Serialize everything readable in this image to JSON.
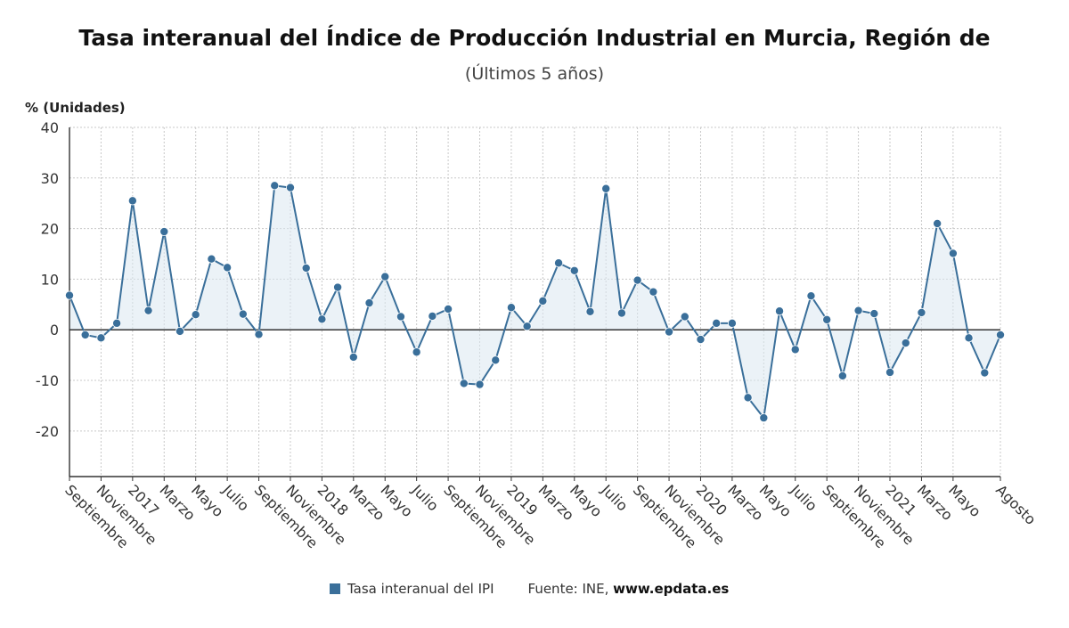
{
  "title": "Tasa interanual del Índice de Producción Industrial en Murcia, Región de",
  "subtitle": "(Últimos 5 años)",
  "legend": {
    "label": "Tasa interanual del IPI",
    "color": "#3a6f9a"
  },
  "source": {
    "prefix": "Fuente: INE,",
    "link": "www.epdata.es"
  },
  "chart_data": {
    "type": "line",
    "title": "Tasa interanual del Índice de Producción Industrial en Murcia, Región de",
    "subtitle": "(Últimos 5 años)",
    "ylabel": "% (Unidades)",
    "xlabel": "",
    "ylim": [
      -29,
      40
    ],
    "yticks": [
      40,
      30,
      20,
      10,
      0,
      -10,
      -20
    ],
    "grid": true,
    "legend_position": "bottom",
    "line_color": "#3a6f9a",
    "fill_color": "#dbe7f1",
    "x_tick_labels": [
      "Septiembre",
      "Noviembre",
      "2017",
      "Marzo",
      "Mayo",
      "Julio",
      "Septiembre",
      "Noviembre",
      "2018",
      "Marzo",
      "Mayo",
      "Julio",
      "Septiembre",
      "Noviembre",
      "2019",
      "Marzo",
      "Mayo",
      "Julio",
      "Septiembre",
      "Noviembre",
      "2020",
      "Marzo",
      "Mayo",
      "Julio",
      "Septiembre",
      "Noviembre",
      "2021",
      "Marzo",
      "Mayo",
      "Agosto"
    ],
    "series": [
      {
        "name": "Tasa interanual del IPI",
        "values": [
          6.8,
          -1.0,
          -1.6,
          1.3,
          25.5,
          3.8,
          19.4,
          -0.3,
          3.0,
          14.0,
          12.3,
          3.1,
          -0.9,
          28.5,
          28.1,
          12.2,
          2.1,
          8.4,
          -5.4,
          5.3,
          10.5,
          2.6,
          -4.4,
          2.7,
          4.1,
          -10.6,
          -10.8,
          -6.0,
          4.4,
          0.7,
          5.7,
          13.2,
          11.7,
          3.6,
          27.9,
          3.3,
          9.8,
          7.5,
          -0.4,
          2.6,
          -1.9,
          1.3,
          1.3,
          -13.4,
          -17.4,
          3.7,
          -3.9,
          6.7,
          2.0,
          -9.1,
          3.8,
          3.2,
          -8.4,
          -2.6,
          3.4,
          21.0,
          15.1,
          -1.6,
          -8.5,
          -1.0
        ]
      }
    ]
  }
}
